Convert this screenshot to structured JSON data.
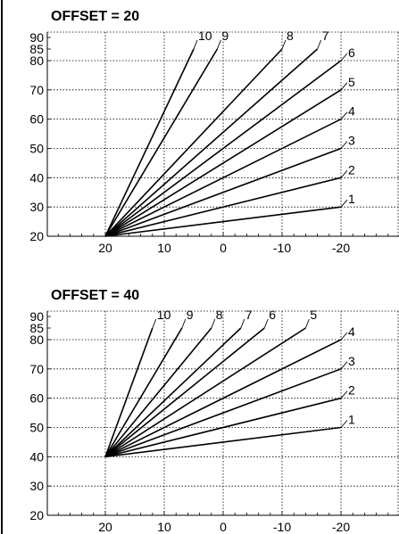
{
  "chart_data": [
    {
      "type": "line",
      "title": "OFFSET = 20",
      "x_ticks": [
        "20",
        "10",
        "0",
        "-10",
        "-20"
      ],
      "x_tick_values": [
        20,
        10,
        0,
        -10,
        -20
      ],
      "xlim": [
        30,
        -30
      ],
      "y_ticks": [
        "20",
        "30",
        "40",
        "50",
        "60",
        "70",
        "80",
        "85",
        "90"
      ],
      "y_tick_values": [
        20,
        30,
        40,
        50,
        60,
        70,
        80,
        85,
        90
      ],
      "ylim": [
        20,
        90
      ],
      "grid": true,
      "series": [
        {
          "name": "1",
          "x": [
            20,
            -20
          ],
          "y": [
            20,
            30
          ]
        },
        {
          "name": "2",
          "x": [
            20,
            -20
          ],
          "y": [
            20,
            40
          ]
        },
        {
          "name": "3",
          "x": [
            20,
            -20
          ],
          "y": [
            20,
            50
          ]
        },
        {
          "name": "4",
          "x": [
            20,
            -20
          ],
          "y": [
            20,
            60
          ]
        },
        {
          "name": "5",
          "x": [
            20,
            -20
          ],
          "y": [
            20,
            70
          ]
        },
        {
          "name": "6",
          "x": [
            20,
            -20
          ],
          "y": [
            20,
            80
          ]
        },
        {
          "name": "7",
          "x": [
            20,
            -16
          ],
          "y": [
            20,
            85
          ]
        },
        {
          "name": "8",
          "x": [
            20,
            -10
          ],
          "y": [
            20,
            85
          ]
        },
        {
          "name": "9",
          "x": [
            20,
            1
          ],
          "y": [
            20,
            85
          ]
        },
        {
          "name": "10",
          "x": [
            20,
            5
          ],
          "y": [
            20,
            85
          ]
        }
      ]
    },
    {
      "type": "line",
      "title": "OFFSET = 40",
      "x_ticks": [
        "20",
        "10",
        "0",
        "-10",
        "-20"
      ],
      "x_tick_values": [
        20,
        10,
        0,
        -10,
        -20
      ],
      "xlim": [
        30,
        -30
      ],
      "y_ticks": [
        "20",
        "30",
        "40",
        "50",
        "60",
        "70",
        "80",
        "85",
        "90"
      ],
      "y_tick_values": [
        20,
        30,
        40,
        50,
        60,
        70,
        80,
        85,
        90
      ],
      "ylim": [
        20,
        90
      ],
      "grid": true,
      "series": [
        {
          "name": "1",
          "x": [
            20,
            -20
          ],
          "y": [
            40,
            50
          ]
        },
        {
          "name": "2",
          "x": [
            20,
            -20
          ],
          "y": [
            40,
            60
          ]
        },
        {
          "name": "3",
          "x": [
            20,
            -20
          ],
          "y": [
            40,
            70
          ]
        },
        {
          "name": "4",
          "x": [
            20,
            -20
          ],
          "y": [
            40,
            80
          ]
        },
        {
          "name": "5",
          "x": [
            20,
            -14
          ],
          "y": [
            40,
            85
          ]
        },
        {
          "name": "6",
          "x": [
            20,
            -7
          ],
          "y": [
            40,
            85
          ]
        },
        {
          "name": "7",
          "x": [
            20,
            -3
          ],
          "y": [
            40,
            85
          ]
        },
        {
          "name": "8",
          "x": [
            20,
            2
          ],
          "y": [
            40,
            85
          ]
        },
        {
          "name": "9",
          "x": [
            20,
            7
          ],
          "y": [
            40,
            85
          ]
        },
        {
          "name": "10",
          "x": [
            20,
            12
          ],
          "y": [
            40,
            85
          ]
        }
      ]
    }
  ]
}
